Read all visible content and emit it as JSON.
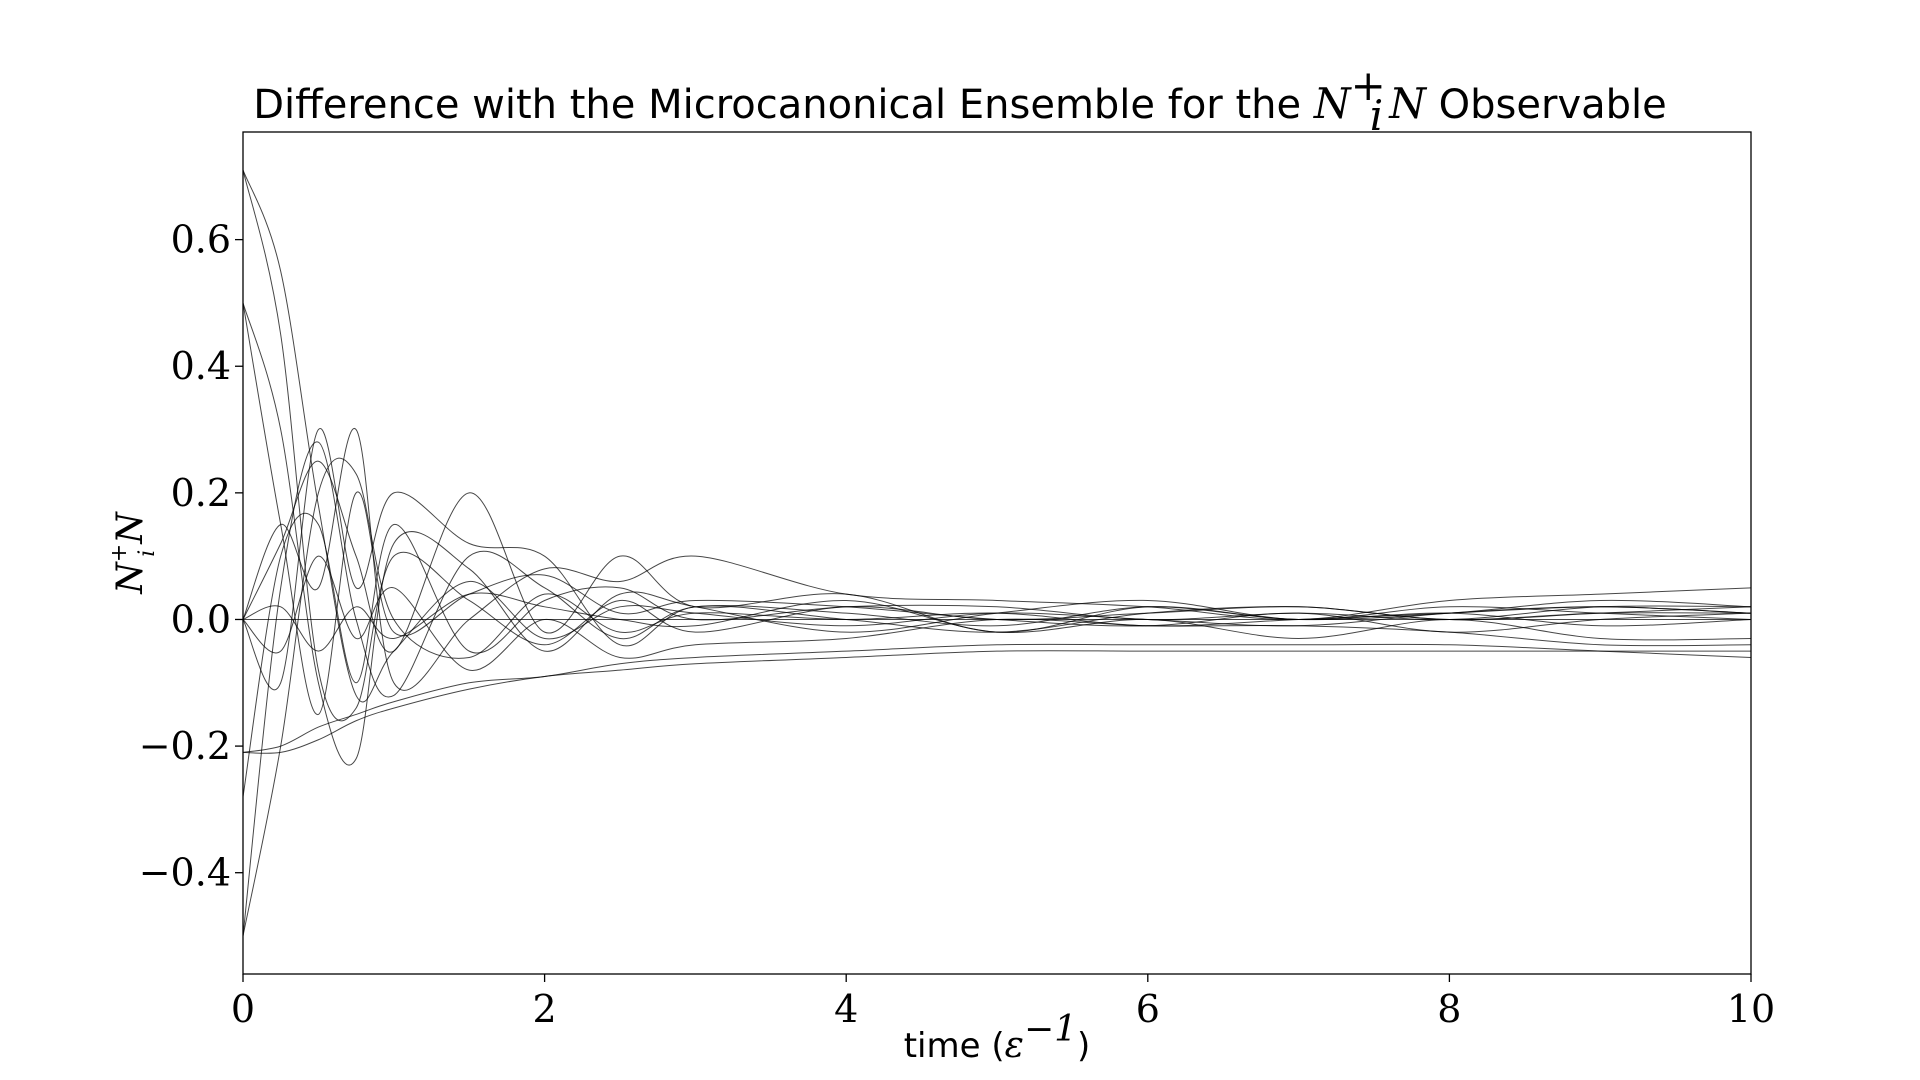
{
  "chart_data": {
    "type": "line",
    "title": {
      "prefix": "Difference with the Microcanonical Ensemble for the ",
      "math_base": "N",
      "math_sup": "+",
      "math_sub": "i",
      "math_tail": "N",
      "suffix": " Observable"
    },
    "xlabel": {
      "text": "time (",
      "math": "ε",
      "sup": "−1",
      "close": ")"
    },
    "ylabel": {
      "base": "N",
      "sup": "+",
      "sub": "i",
      "tail": "N"
    },
    "xlim": [
      0,
      10
    ],
    "ylim": [
      -0.56,
      0.77
    ],
    "xticks": [
      0,
      2,
      4,
      6,
      8,
      10
    ],
    "xtick_labels": [
      "0",
      "2",
      "4",
      "6",
      "8",
      "10"
    ],
    "yticks": [
      -0.4,
      -0.2,
      0.0,
      0.2,
      0.4,
      0.6
    ],
    "ytick_labels": [
      "−0.4",
      "−0.2",
      "0.0",
      "0.2",
      "0.4",
      "0.6"
    ],
    "grid": false,
    "legend": "none",
    "line_color": "#000000",
    "series": [
      {
        "x": [
          0,
          0.25,
          0.5,
          0.75,
          1,
          1.5,
          2,
          2.5,
          3,
          4,
          5,
          6,
          7,
          8,
          9,
          10
        ],
        "values": [
          0.71,
          0.55,
          0.18,
          -0.12,
          -0.05,
          0.06,
          -0.03,
          0.02,
          0.01,
          -0.01,
          0.01,
          0.0,
          -0.01,
          0.01,
          0.02,
          0.01
        ]
      },
      {
        "x": [
          0,
          0.25,
          0.5,
          0.75,
          1,
          1.5,
          2,
          2.5,
          3,
          4,
          5,
          6,
          7,
          8,
          9,
          10
        ],
        "values": [
          0.71,
          0.45,
          -0.08,
          -0.14,
          0.1,
          0.03,
          -0.04,
          0.03,
          -0.02,
          0.02,
          0.0,
          0.01,
          0.02,
          0.0,
          0.01,
          0.02
        ]
      },
      {
        "x": [
          0,
          0.25,
          0.5,
          0.75,
          1,
          1.5,
          2,
          2.5,
          3,
          4,
          5,
          6,
          7,
          8,
          9,
          10
        ],
        "values": [
          0.5,
          0.3,
          -0.1,
          -0.22,
          0.12,
          0.08,
          -0.05,
          0.04,
          0.02,
          -0.02,
          0.01,
          0.03,
          0.0,
          0.02,
          0.01,
          0.0
        ]
      },
      {
        "x": [
          0,
          0.25,
          0.5,
          0.75,
          1,
          1.5,
          2,
          2.5,
          3,
          4,
          5,
          6,
          7,
          8,
          9,
          10
        ],
        "values": [
          0.5,
          0.15,
          -0.15,
          0.2,
          -0.02,
          0.04,
          0.07,
          0.01,
          0.03,
          0.02,
          0.0,
          -0.01,
          0.01,
          -0.02,
          0.0,
          0.01
        ]
      },
      {
        "x": [
          0,
          0.25,
          0.5,
          0.75,
          1,
          1.5,
          2,
          2.5,
          3,
          4,
          5,
          6,
          7,
          8,
          9,
          10
        ],
        "values": [
          -0.5,
          -0.2,
          0.2,
          0.23,
          0.0,
          -0.06,
          0.04,
          -0.02,
          0.01,
          0.0,
          0.01,
          -0.01,
          0.0,
          0.01,
          0.02,
          0.01
        ]
      },
      {
        "x": [
          0,
          0.25,
          0.5,
          0.75,
          1,
          1.5,
          2,
          2.5,
          3,
          4,
          5,
          6,
          7,
          8,
          9,
          10
        ],
        "values": [
          -0.5,
          0.05,
          0.28,
          0.0,
          -0.12,
          0.1,
          0.05,
          -0.03,
          0.02,
          0.01,
          -0.01,
          0.02,
          0.0,
          0.01,
          -0.01,
          0.0
        ]
      },
      {
        "x": [
          0,
          0.25,
          0.5,
          0.75,
          1,
          1.5,
          2,
          2.5,
          3,
          4,
          5,
          6,
          7,
          8,
          9,
          10
        ],
        "values": [
          -0.28,
          0.1,
          0.15,
          -0.1,
          0.15,
          -0.05,
          0.03,
          0.05,
          0.0,
          0.02,
          0.02,
          0.0,
          0.01,
          0.0,
          0.02,
          0.02
        ]
      },
      {
        "x": [
          0,
          0.25,
          0.5,
          0.75,
          1,
          1.5,
          2,
          2.5,
          3,
          4,
          5,
          6,
          7,
          8,
          9,
          10
        ],
        "values": [
          -0.21,
          -0.21,
          -0.19,
          -0.16,
          -0.14,
          -0.11,
          -0.09,
          -0.08,
          -0.07,
          -0.06,
          -0.05,
          -0.05,
          -0.05,
          -0.05,
          -0.05,
          -0.05
        ]
      },
      {
        "x": [
          0,
          0.25,
          0.5,
          0.75,
          1,
          1.5,
          2,
          2.5,
          3,
          4,
          5,
          6,
          7,
          8,
          9,
          10
        ],
        "values": [
          -0.21,
          -0.2,
          -0.17,
          -0.15,
          -0.13,
          -0.1,
          -0.09,
          -0.07,
          -0.06,
          -0.05,
          -0.04,
          -0.04,
          -0.04,
          -0.04,
          -0.05,
          -0.06
        ]
      },
      {
        "x": [
          0,
          0.25,
          0.5,
          0.75,
          1,
          1.5,
          2,
          2.5,
          3,
          4,
          5,
          6,
          7,
          8,
          9,
          10
        ],
        "values": [
          0.0,
          0.12,
          0.25,
          0.1,
          -0.05,
          0.2,
          -0.02,
          0.1,
          0.02,
          0.04,
          -0.02,
          0.02,
          0.0,
          0.01,
          0.03,
          0.02
        ]
      },
      {
        "x": [
          0,
          0.25,
          0.5,
          0.75,
          1,
          1.5,
          2,
          2.5,
          3,
          4,
          5,
          6,
          7,
          8,
          9,
          10
        ],
        "values": [
          0.0,
          -0.1,
          0.3,
          0.05,
          0.2,
          0.12,
          0.1,
          -0.04,
          0.02,
          0.0,
          -0.02,
          0.01,
          0.02,
          0.0,
          0.01,
          0.01
        ]
      },
      {
        "x": [
          0,
          0.25,
          0.5,
          0.75,
          1,
          1.5,
          2,
          2.5,
          3,
          4,
          5,
          6,
          7,
          8,
          9,
          10
        ],
        "values": [
          0.0,
          0.02,
          -0.05,
          0.02,
          -0.03,
          0.04,
          0.02,
          0.0,
          -0.01,
          0.03,
          -0.02,
          0.0,
          -0.03,
          0.0,
          -0.03,
          -0.03
        ]
      },
      {
        "x": [
          0,
          0.25,
          0.5,
          0.75,
          1,
          1.5,
          2,
          2.5,
          3,
          4,
          5,
          6,
          7,
          8,
          9,
          10
        ],
        "values": [
          0.0,
          0.15,
          0.05,
          0.3,
          -0.1,
          0.0,
          0.08,
          0.06,
          0.1,
          0.04,
          0.03,
          0.02,
          0.0,
          0.03,
          0.04,
          0.05
        ]
      },
      {
        "x": [
          0,
          0.25,
          0.5,
          0.75,
          1,
          1.5,
          2,
          2.5,
          3,
          4,
          5,
          6,
          7,
          8,
          9,
          10
        ],
        "values": [
          0.0,
          -0.05,
          0.1,
          -0.03,
          0.05,
          -0.08,
          0.0,
          -0.06,
          -0.04,
          -0.03,
          0.0,
          -0.01,
          -0.01,
          -0.02,
          -0.04,
          -0.04
        ]
      },
      {
        "x": [
          0,
          0.25,
          0.5,
          0.75,
          1,
          1.5,
          2,
          2.5,
          3,
          4,
          5,
          6,
          7,
          8,
          9,
          10
        ],
        "values": [
          0.0,
          0.0,
          0.0,
          0.0,
          0.0,
          0.0,
          0.0,
          0.0,
          0.0,
          0.0,
          0.0,
          0.0,
          0.0,
          0.0,
          0.0,
          0.0
        ]
      }
    ]
  }
}
